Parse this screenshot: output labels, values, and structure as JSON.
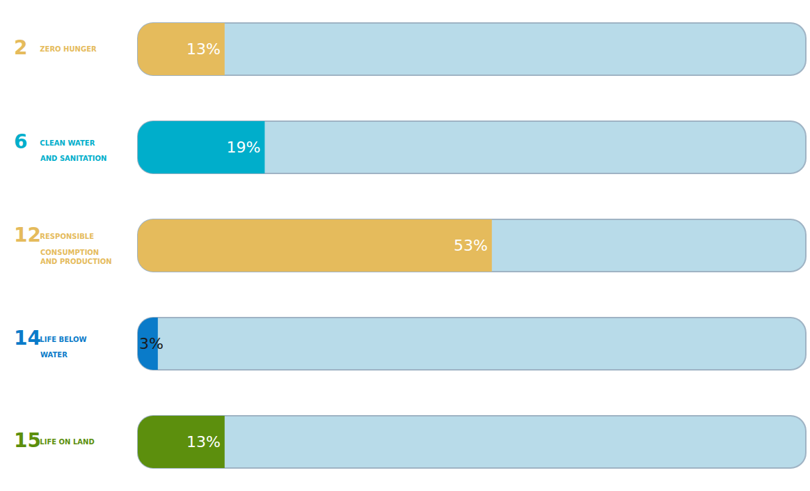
{
  "chart_data": {
    "type": "bar",
    "orientation": "horizontal",
    "goals": [
      2,
      6,
      12,
      14,
      15
    ],
    "categories": [
      "ZERO HUNGER",
      "CLEAN WATER AND SANITATION",
      "RESPONSIBLE CONSUMPTION AND PRODUCTION",
      "LIFE BELOW WATER",
      "LIFE ON LAND"
    ],
    "values": [
      13,
      19,
      53,
      3,
      13
    ],
    "value_labels": [
      "13%",
      "19%",
      "53%",
      "3%",
      "13%"
    ],
    "colors": [
      "#e5bb5c",
      "#00aecb",
      "#e5bb5c",
      "#0a7bc9",
      "#5c8f0d"
    ],
    "xlim": [
      0,
      100
    ],
    "data_labels": true,
    "tick_labels": false,
    "grid": false
  }
}
